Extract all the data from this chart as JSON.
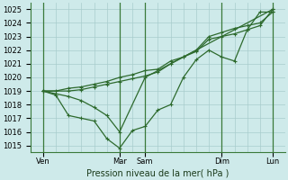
{
  "title": "",
  "xlabel": "Pression niveau de la mer( hPa )",
  "ylim": [
    1014.5,
    1025.5
  ],
  "yticks": [
    1015,
    1016,
    1017,
    1018,
    1019,
    1020,
    1021,
    1022,
    1023,
    1024,
    1025
  ],
  "bg_color": "#ceeaea",
  "line_color": "#2d6a2d",
  "grid_color": "#a8cccc",
  "vline_color": "#3a7a3a",
  "xlim": [
    0,
    10
  ],
  "xtick_positions": [
    0.5,
    3.5,
    4.5,
    7.5,
    9.5
  ],
  "xtick_labels": [
    "Ven",
    "Mar",
    "Sam",
    "Dim",
    "Lun"
  ],
  "vlines_x": [
    0.5,
    3.5,
    4.5,
    7.5,
    9.5
  ],
  "line1_x": [
    0.5,
    1.0,
    1.5,
    2.0,
    2.5,
    3.0,
    3.5,
    4.0,
    4.5,
    5.0,
    5.5,
    6.0,
    6.5,
    7.0,
    7.5,
    8.0,
    8.5,
    9.0,
    9.5
  ],
  "line1_y": [
    1019.0,
    1018.7,
    1017.2,
    1017.0,
    1016.8,
    1015.5,
    1014.8,
    1016.1,
    1016.4,
    1017.6,
    1018.0,
    1020.0,
    1021.3,
    1022.0,
    1021.5,
    1021.2,
    1023.5,
    1024.8,
    1024.8
  ],
  "line2_x": [
    0.5,
    1.0,
    1.5,
    2.0,
    2.5,
    3.0,
    3.5,
    4.0,
    4.5,
    5.0,
    5.5,
    6.0,
    6.5,
    7.0,
    7.5,
    8.0,
    8.5,
    9.0,
    9.5
  ],
  "line2_y": [
    1019.0,
    1019.0,
    1019.2,
    1019.3,
    1019.5,
    1019.7,
    1020.0,
    1020.2,
    1020.5,
    1020.6,
    1021.2,
    1021.5,
    1022.0,
    1023.0,
    1023.3,
    1023.6,
    1023.8,
    1024.0,
    1024.8
  ],
  "line3_x": [
    0.5,
    1.5,
    2.0,
    2.5,
    3.0,
    3.5,
    4.0,
    4.5,
    5.0,
    5.5,
    6.0,
    6.5,
    7.0,
    7.5,
    8.0,
    8.5,
    9.0,
    9.5
  ],
  "line3_y": [
    1019.0,
    1019.0,
    1019.1,
    1019.3,
    1019.5,
    1019.7,
    1019.9,
    1020.1,
    1020.4,
    1021.0,
    1021.5,
    1021.9,
    1022.8,
    1023.0,
    1023.2,
    1023.5,
    1023.8,
    1025.0
  ],
  "line4_x": [
    0.5,
    1.0,
    1.5,
    2.0,
    2.5,
    3.0,
    3.5,
    4.5,
    9.5
  ],
  "line4_y": [
    1019.0,
    1018.8,
    1018.6,
    1018.3,
    1017.8,
    1017.2,
    1016.0,
    1020.0,
    1025.0
  ],
  "marker_size": 2.5,
  "linewidth": 0.9,
  "grid_minor_color": "#b8d8d8",
  "grid_linewidth": 0.5
}
